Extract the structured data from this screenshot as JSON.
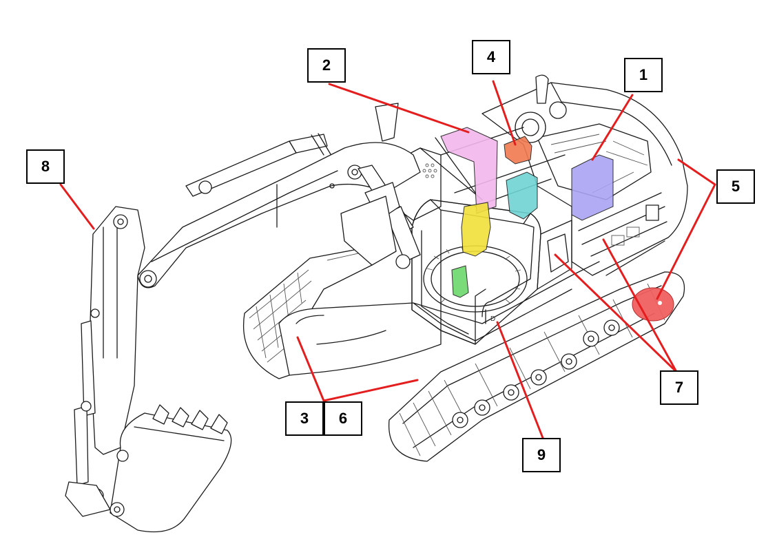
{
  "figure": {
    "subject": "excavator-component-locations",
    "colors": {
      "leader": "#e41e1e",
      "c1_ecu": "#a9a4f2",
      "c2_tank": "#f2b8ec",
      "c4_valve": "#f07a50",
      "c_hydraulic_block": "#6fd3d3",
      "c_pump_yellow": "#f1e03a",
      "c_motor_green": "#6cd86c",
      "c5_fan": "#f06060"
    }
  },
  "callouts": [
    {
      "id": "1",
      "label": "1"
    },
    {
      "id": "2",
      "label": "2"
    },
    {
      "id": "3",
      "label": "3"
    },
    {
      "id": "4",
      "label": "4"
    },
    {
      "id": "5",
      "label": "5"
    },
    {
      "id": "6",
      "label": "6"
    },
    {
      "id": "7",
      "label": "7"
    },
    {
      "id": "8",
      "label": "8"
    },
    {
      "id": "9",
      "label": "9"
    }
  ]
}
